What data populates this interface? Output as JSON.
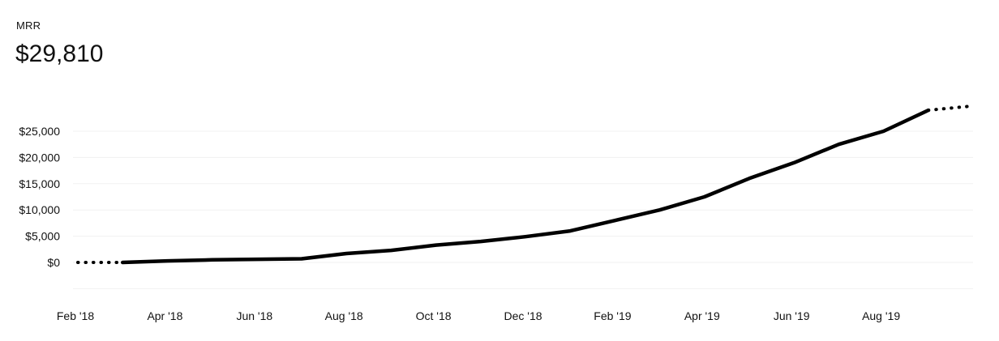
{
  "header": {
    "metric_label": "MRR",
    "metric_value": "$29,810"
  },
  "colors": {
    "line": "#000000",
    "grid": "#f1f1f1",
    "text": "#111111"
  },
  "chart_data": {
    "type": "line",
    "title": "",
    "xlabel": "",
    "ylabel": "",
    "x_tick_labels": [
      "Feb '18",
      "Apr '18",
      "Jun '18",
      "Aug '18",
      "Oct '18",
      "Dec '18",
      "Feb '19",
      "Apr '19",
      "Jun '19",
      "Aug '19"
    ],
    "y_tick_labels": [
      "$0",
      "$5,000",
      "$10,000",
      "$15,000",
      "$20,000",
      "$25,000"
    ],
    "y_ticks": [
      0,
      5000,
      10000,
      15000,
      20000,
      25000
    ],
    "ylim": [
      -5000,
      30000
    ],
    "x_months": [
      "2018-02",
      "2018-03",
      "2018-04",
      "2018-05",
      "2018-06",
      "2018-07",
      "2018-08",
      "2018-09",
      "2018-10",
      "2018-11",
      "2018-12",
      "2019-01",
      "2019-02",
      "2019-03",
      "2019-04",
      "2019-05",
      "2019-06",
      "2019-07",
      "2019-08",
      "2019-09",
      "2019-10"
    ],
    "series": [
      {
        "values": [
          0,
          0,
          300,
          500,
          600,
          700,
          1700,
          2300,
          3300,
          4000,
          4900,
          6000,
          8000,
          10000,
          12500,
          16000,
          19000,
          22500,
          25000,
          29000,
          29810
        ]
      }
    ],
    "partial_start_points": 2,
    "partial_end_points": 2,
    "grid": true,
    "legend": "none"
  }
}
